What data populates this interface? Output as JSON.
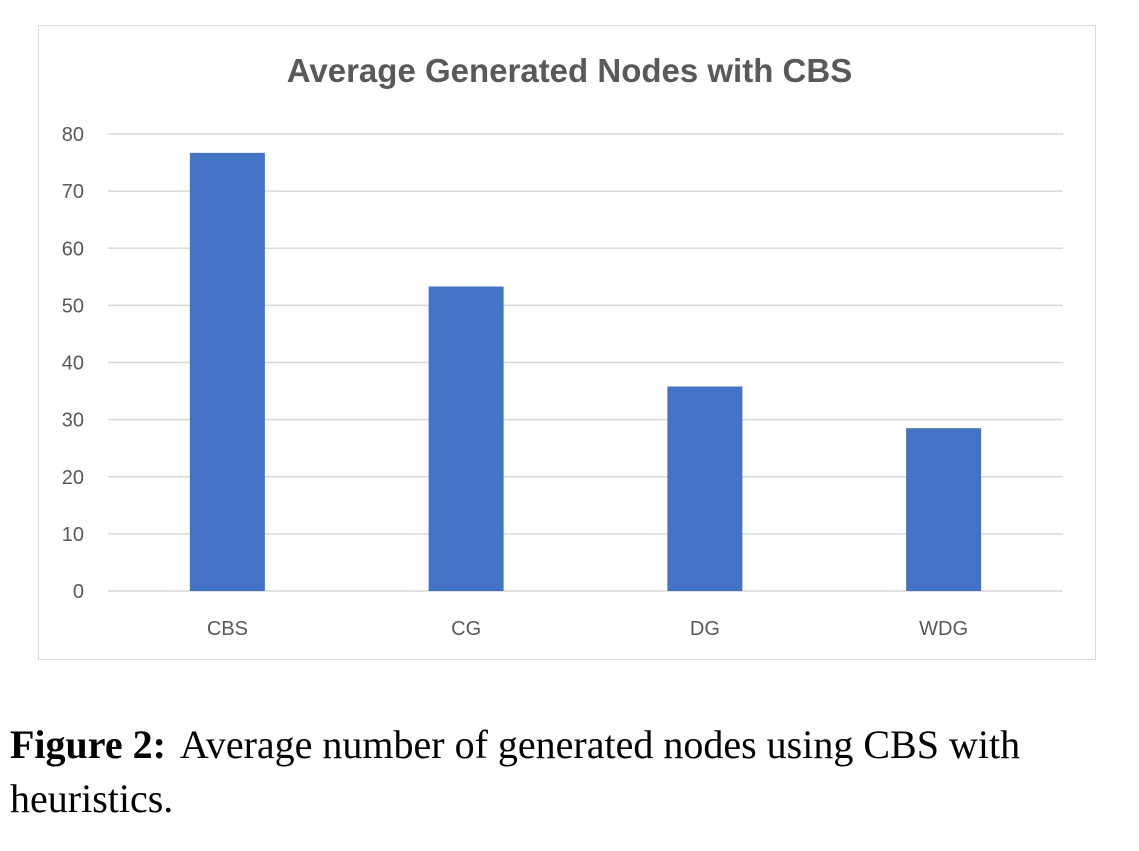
{
  "colors": {
    "bar": "#4472c4",
    "grid": "#d9d9d9",
    "axis_text": "#595959",
    "title": "#595959"
  },
  "chart_data": {
    "type": "bar",
    "title": "Average Generated Nodes with CBS",
    "xlabel": "",
    "ylabel": "",
    "categories": [
      "CBS",
      "CG",
      "DG",
      "WDG"
    ],
    "values": [
      76.7,
      53.3,
      35.8,
      28.5
    ],
    "ylim": [
      0,
      80
    ],
    "yticks": [
      0,
      10,
      20,
      30,
      40,
      50,
      60,
      70,
      80
    ],
    "grid": true,
    "legend": "none"
  },
  "caption": {
    "label": "Figure 2:",
    "text": "Average number of generated nodes using CBS with heuristics."
  }
}
